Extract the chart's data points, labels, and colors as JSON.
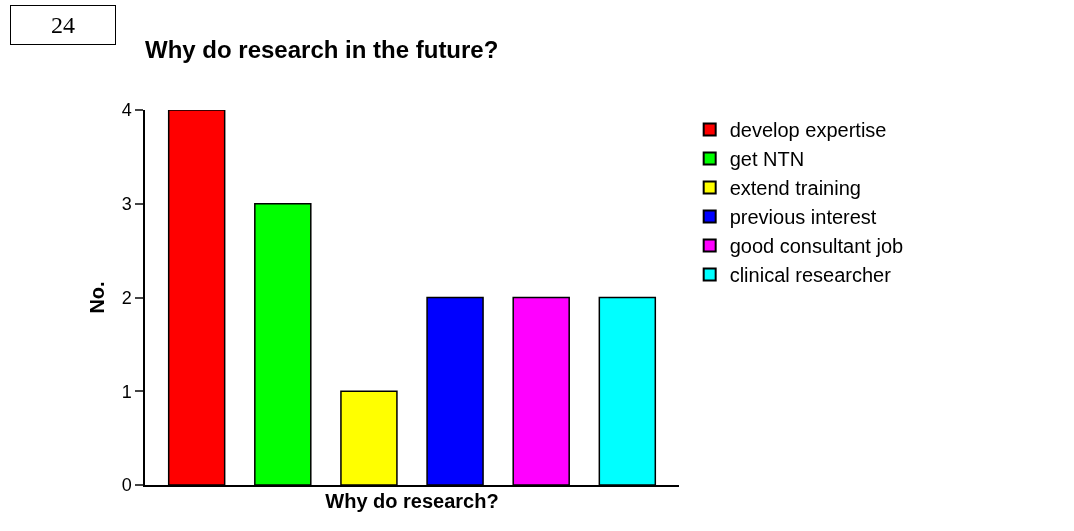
{
  "chart_data": {
    "type": "bar",
    "title": "Why do research in the future?",
    "xlabel": "Why do research?",
    "ylabel": "No.",
    "categories": [
      null,
      null,
      null,
      null,
      null,
      null
    ],
    "series": [
      {
        "name": "develop expertise",
        "color": "#ff0000",
        "values": [
          4,
          null,
          null,
          null,
          null,
          null
        ]
      },
      {
        "name": "get NTN",
        "color": "#00ff00",
        "values": [
          null,
          3,
          null,
          null,
          null,
          null
        ]
      },
      {
        "name": "extend training",
        "color": "#ffff00",
        "values": [
          null,
          null,
          1,
          null,
          null,
          null
        ]
      },
      {
        "name": "previous interest",
        "color": "#0000ff",
        "values": [
          null,
          null,
          null,
          2,
          null,
          null
        ]
      },
      {
        "name": "good consultant job",
        "color": "#ff00ff",
        "values": [
          null,
          null,
          null,
          null,
          2,
          null
        ]
      },
      {
        "name": "clinical researcher",
        "color": "#00ffff",
        "values": [
          null,
          null,
          null,
          null,
          null,
          2
        ]
      }
    ],
    "ylim": [
      0,
      4
    ],
    "yticks": [
      0,
      1,
      2,
      3,
      4
    ],
    "legend": "right",
    "annotations": [
      "24"
    ]
  }
}
